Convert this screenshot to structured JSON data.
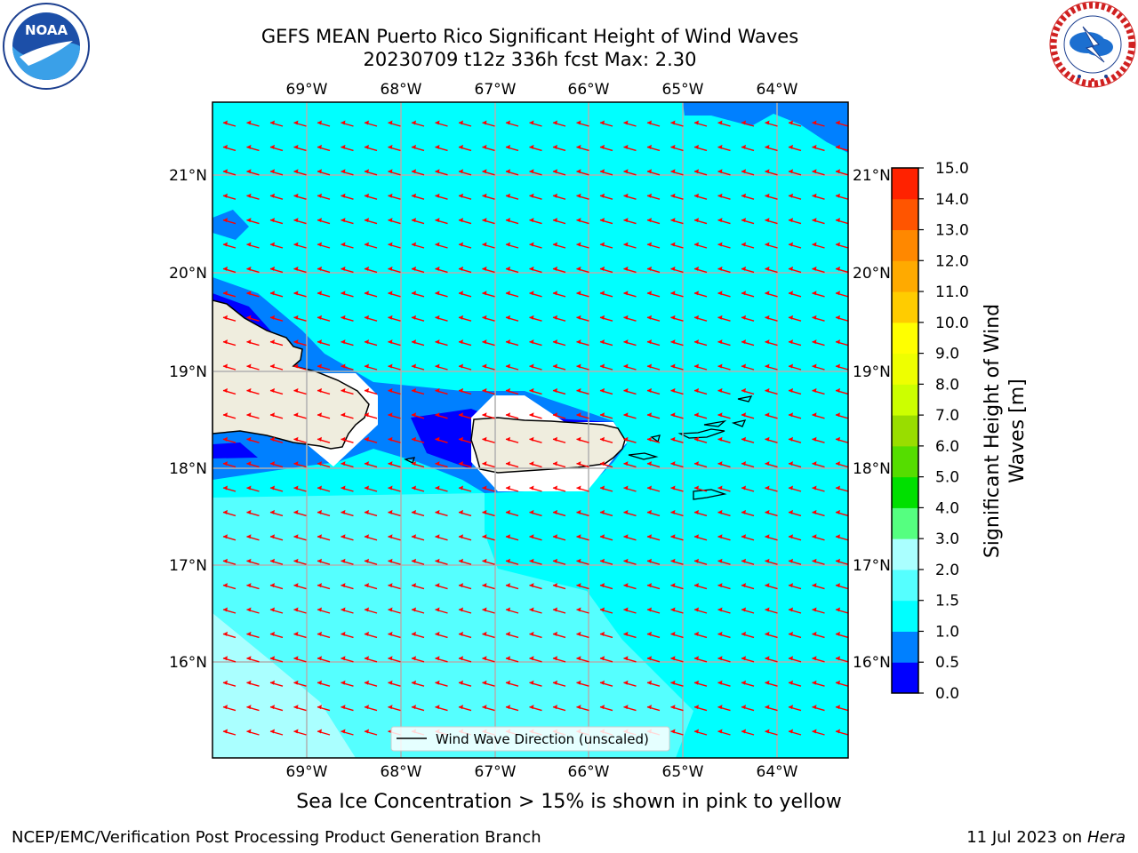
{
  "header": {
    "title_line1": "GEFS MEAN Puerto Rico Significant Height of Wind Waves",
    "title_line2": "20230709 t12z 336h fcst   Max: 2.30"
  },
  "logos": {
    "left": "NOAA",
    "left_ring_text": "NATIONAL OCEANIC AND ATMOSPHERIC ADMINISTRATION · U.S. DEPARTMENT OF COMMERCE",
    "right_ring_text": "NATIONAL WEATHER SERVICE"
  },
  "map": {
    "lon_labels": [
      "69°W",
      "68°W",
      "67°W",
      "66°W",
      "65°W",
      "64°W"
    ],
    "lat_labels": [
      "21°N",
      "20°N",
      "19°N",
      "18°N",
      "17°N",
      "16°N"
    ],
    "legend_label": "Wind Wave Direction (unscaled)",
    "arrow_color": "#ff0000",
    "land_color": "#efedde",
    "grid_color": "#b0b0b0"
  },
  "colorbar": {
    "title_line1": "Significant Height of Wind",
    "title_line2": "Waves [m]",
    "ticks": [
      "0.0",
      "0.5",
      "1.0",
      "1.5",
      "2.0",
      "3.0",
      "4.0",
      "5.0",
      "6.0",
      "7.0",
      "8.0",
      "9.0",
      "10.0",
      "11.0",
      "12.0",
      "13.0",
      "14.0",
      "15.0"
    ],
    "colors": [
      "#0000ff",
      "#0080ff",
      "#00ffff",
      "#55ffff",
      "#aaffff",
      "#55ff80",
      "#00e000",
      "#55dd00",
      "#99dd00",
      "#ccff00",
      "#eeff00",
      "#ffff00",
      "#ffcc00",
      "#ffaa00",
      "#ff8800",
      "#ff5500",
      "#ff2200"
    ]
  },
  "subtitle": "Sea Ice Concentration > 15% is shown in pink to yellow",
  "footer": {
    "left": "NCEP/EMC/Verification Post Processing Product Generation Branch",
    "right_date": "11 Jul 2023 on ",
    "right_host": "Hera"
  }
}
